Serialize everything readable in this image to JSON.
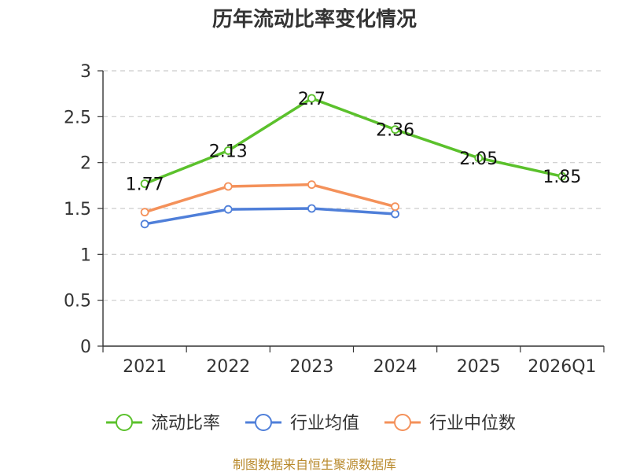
{
  "chart_data": {
    "type": "line",
    "title": "历年流动比率变化情况",
    "categories": [
      "2021",
      "2022",
      "2023",
      "2024",
      "2025",
      "2026Q1"
    ],
    "ylim": [
      0,
      3
    ],
    "yticks": [
      0,
      0.5,
      1,
      1.5,
      2,
      2.5,
      3
    ],
    "ytick_labels": [
      "0",
      "0.5",
      "1",
      "1.5",
      "2",
      "2.5",
      "3"
    ],
    "grid": true,
    "legend_position": "bottom",
    "series": [
      {
        "name": "流动比率",
        "color": "#5bc12c",
        "values": [
          1.77,
          2.13,
          2.7,
          2.36,
          2.05,
          1.85
        ],
        "labels": [
          "1.77",
          "2.13",
          "2.7",
          "2.36",
          "2.05",
          "1.85"
        ],
        "show_labels": true
      },
      {
        "name": "行业均值",
        "color": "#4f7fd9",
        "values": [
          1.33,
          1.49,
          1.5,
          1.44,
          null,
          null
        ],
        "show_labels": false
      },
      {
        "name": "行业中位数",
        "color": "#f4915a",
        "values": [
          1.46,
          1.74,
          1.76,
          1.52,
          null,
          null
        ],
        "show_labels": false
      }
    ]
  },
  "source": "制图数据来自恒生聚源数据库"
}
